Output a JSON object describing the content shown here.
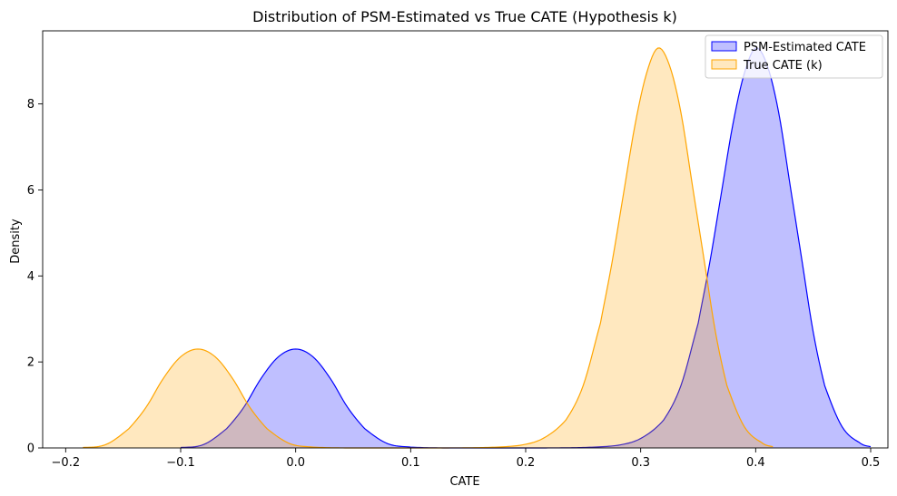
{
  "chart_data": {
    "type": "area",
    "title": "Distribution of PSM-Estimated vs True CATE (Hypothesis k)",
    "xlabel": "CATE",
    "ylabel": "Density",
    "xlim": [
      -0.22,
      0.515
    ],
    "ylim": [
      0,
      9.7
    ],
    "xticks": [
      -0.2,
      -0.1,
      0.0,
      0.1,
      0.2,
      0.3,
      0.4,
      0.5
    ],
    "xtick_labels": [
      "−0.2",
      "−0.1",
      "0.0",
      "0.1",
      "0.2",
      "0.3",
      "0.4",
      "0.5"
    ],
    "yticks": [
      0,
      2,
      4,
      6,
      8
    ],
    "ytick_labels": [
      "0",
      "2",
      "4",
      "6",
      "8"
    ],
    "grid": false,
    "legend_position": "top-right",
    "series": [
      {
        "name": "PSM-Estimated CATE",
        "color": "#0000ff",
        "fill": "#bcbcff",
        "range": [
          -0.1,
          0.5
        ],
        "x": [
          -0.1,
          -0.08,
          -0.06,
          -0.045,
          -0.03,
          -0.015,
          0.0,
          0.015,
          0.03,
          0.045,
          0.06,
          0.08,
          0.1,
          0.13,
          0.17,
          0.21,
          0.25,
          0.28,
          0.3,
          0.32,
          0.335,
          0.35,
          0.36,
          0.37,
          0.38,
          0.39,
          0.4,
          0.41,
          0.42,
          0.43,
          0.44,
          0.45,
          0.46,
          0.475,
          0.49,
          0.5
        ],
        "y": [
          0.01,
          0.08,
          0.45,
          0.95,
          1.62,
          2.12,
          2.3,
          2.12,
          1.62,
          0.95,
          0.45,
          0.1,
          0.02,
          0.0,
          0.0,
          0.0,
          0.01,
          0.06,
          0.22,
          0.65,
          1.45,
          2.9,
          4.3,
          5.9,
          7.5,
          8.7,
          9.3,
          8.9,
          7.8,
          6.1,
          4.4,
          2.7,
          1.45,
          0.5,
          0.13,
          0.03
        ]
      },
      {
        "name": "True CATE (k)",
        "color": "#ffa500",
        "fill": "#fde5bf",
        "range": [
          -0.185,
          0.415
        ],
        "x": [
          -0.185,
          -0.165,
          -0.145,
          -0.13,
          -0.115,
          -0.1,
          -0.085,
          -0.07,
          -0.055,
          -0.04,
          -0.025,
          -0.005,
          0.015,
          0.045,
          0.085,
          0.125,
          0.165,
          0.195,
          0.215,
          0.235,
          0.25,
          0.265,
          0.275,
          0.285,
          0.295,
          0.305,
          0.315,
          0.325,
          0.335,
          0.345,
          0.355,
          0.365,
          0.375,
          0.39,
          0.405,
          0.415
        ],
        "y": [
          0.01,
          0.08,
          0.45,
          0.95,
          1.62,
          2.12,
          2.3,
          2.12,
          1.62,
          0.95,
          0.45,
          0.1,
          0.02,
          0.0,
          0.0,
          0.0,
          0.01,
          0.06,
          0.22,
          0.65,
          1.45,
          2.9,
          4.3,
          5.9,
          7.5,
          8.7,
          9.3,
          8.9,
          7.8,
          6.1,
          4.4,
          2.7,
          1.45,
          0.5,
          0.13,
          0.03
        ]
      }
    ]
  }
}
